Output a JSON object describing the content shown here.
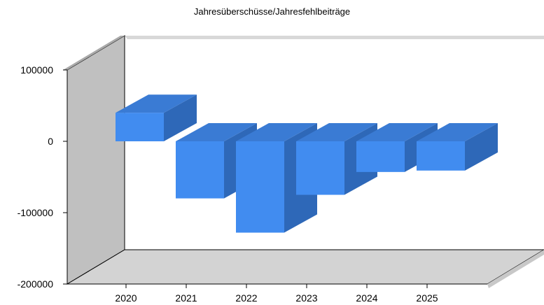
{
  "chart_data": {
    "type": "bar",
    "title": "Jahresüberschüsse/Jahresfehlbeiträge",
    "categories": [
      "2020",
      "2021",
      "2022",
      "2023",
      "2024",
      "2025"
    ],
    "values": [
      40000,
      -80000,
      -128000,
      -75000,
      -43000,
      -41000
    ],
    "ylim": [
      -200000,
      100000
    ],
    "yticks": [
      100000,
      0,
      -100000,
      -200000
    ],
    "ytick_labels": [
      "100000",
      "0",
      "-100000",
      "-200000"
    ],
    "xlabel": "",
    "ylabel": "",
    "grid": false,
    "legend": "none",
    "style": "3d",
    "colors": {
      "bar_front": "#418cf0",
      "bar_top": "#3a7bd4",
      "bar_side": "#2e68b8",
      "back_wall": "#ffffff",
      "left_wall": "#c0c0c0",
      "floor": "#d3d3d3"
    }
  }
}
